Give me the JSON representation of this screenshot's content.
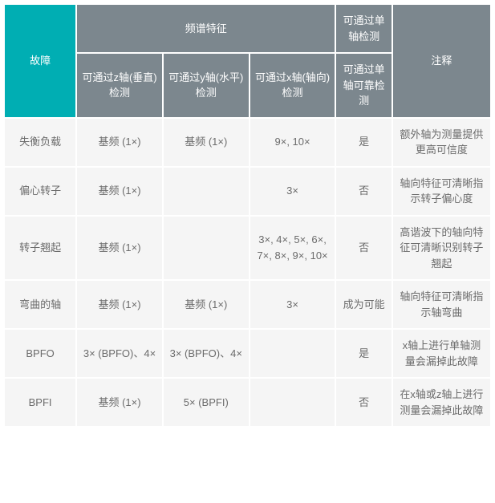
{
  "header": {
    "fault": "故障",
    "spectral": "频谱特征",
    "single_detect": "可通过单轴检测",
    "notes": "注释",
    "z_axis": "可通过z轴(垂直)检测",
    "y_axis": "可通过y轴(水平)检测",
    "x_axis": "可通过x轴(轴向)检测",
    "single_reliable": "可通过单轴可靠检测"
  },
  "rows": [
    {
      "f": "失衡负载",
      "z": "基频 (1×)",
      "y": "基频 (1×)",
      "x": "9×, 10×",
      "s": "是",
      "n": "额外轴为测量提供更高可信度"
    },
    {
      "f": "偏心转子",
      "z": "基频 (1×)",
      "y": "",
      "x": "3×",
      "s": "否",
      "n": "轴向特征可清晰指示转子偏心度"
    },
    {
      "f": "转子翘起",
      "z": "基频 (1×)",
      "y": "",
      "x": "3×, 4×, 5×, 6×, 7×, 8×, 9×, 10×",
      "s": "否",
      "n": "高谐波下的轴向特征可清晰识别转子翘起"
    },
    {
      "f": "弯曲的轴",
      "z": "基频 (1×)",
      "y": "基频 (1×)",
      "x": "3×",
      "s": "成为可能",
      "n": "轴向特征可清晰指示轴弯曲"
    },
    {
      "f": "BPFO",
      "z": "3× (BPFO)、4×",
      "y": "3× (BPFO)、4×",
      "x": "",
      "s": "是",
      "n": "x轴上进行单轴测量会漏掉此故障"
    },
    {
      "f": "BPFI",
      "z": "基频 (1×)",
      "y": "5× (BPFI)",
      "x": "",
      "s": "否",
      "n": "在x轴或z轴上进行测量会漏掉此故障"
    }
  ],
  "colors": {
    "teal": "#00aeb3",
    "grey": "#7c878e",
    "row_bg": "#f5f5f5",
    "text": "#6b6b6b"
  }
}
